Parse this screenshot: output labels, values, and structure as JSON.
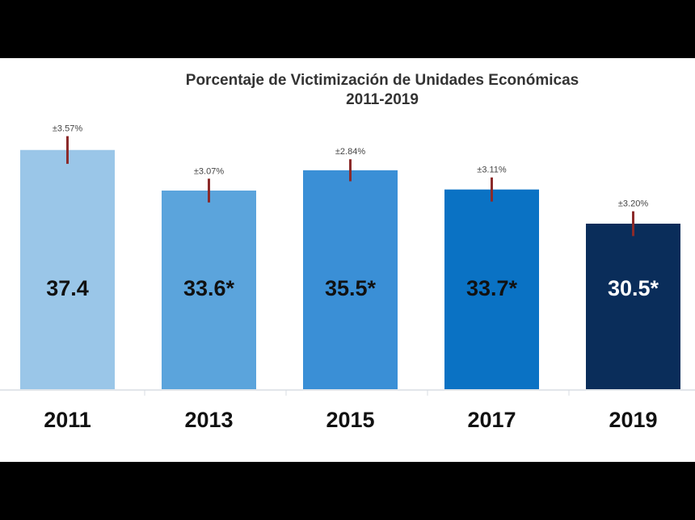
{
  "chart_data": {
    "type": "bar",
    "title": "Porcentaje de Victimización de Unidades Económicas",
    "subtitle": "2011-2019",
    "categories": [
      "2011",
      "2013",
      "2015",
      "2017",
      "2019"
    ],
    "values": [
      37.4,
      33.6,
      35.5,
      33.7,
      30.5
    ],
    "value_labels": [
      "37.4",
      "33.6*",
      "35.5*",
      "33.7*",
      "30.5*"
    ],
    "error_margins": [
      3.57,
      3.07,
      2.84,
      3.11,
      3.2
    ],
    "error_labels": [
      "±3.57%",
      "±3.07%",
      "±2.84%",
      "±3.11%",
      "±3.20%"
    ],
    "ylim": [
      15,
      46
    ],
    "grid": false,
    "xlabel": "",
    "ylabel": "",
    "colors": [
      "#9ac6e8",
      "#5ba4dc",
      "#3a8fd6",
      "#0a72c4",
      "#0a2d5a"
    ],
    "value_label_colors": [
      "#111111",
      "#111111",
      "#111111",
      "#111111",
      "#ffffff"
    ],
    "error_bar_color": "#8b2a2a"
  }
}
